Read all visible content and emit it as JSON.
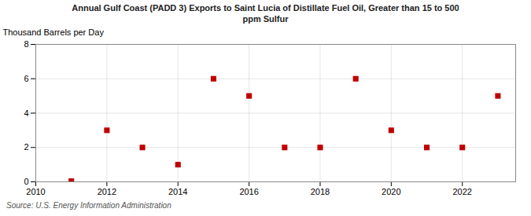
{
  "chart_data": {
    "type": "scatter",
    "title": "Annual Gulf Coast (PADD 3) Exports to Saint Lucia of Distillate Fuel Oil, Greater than 15 to 500\nppm Sulfur",
    "ylabel": "Thousand Barrels per Day",
    "source": "Source: U.S. Energy Information Administration",
    "x": [
      2011,
      2012,
      2013,
      2014,
      2015,
      2016,
      2017,
      2018,
      2019,
      2020,
      2021,
      2022,
      2023
    ],
    "values": [
      0.04,
      3.0,
      2.0,
      1.0,
      6.0,
      5.0,
      2.0,
      2.0,
      6.0,
      3.0,
      2.0,
      2.0,
      5.0
    ],
    "color": "#c00000",
    "marker": "square",
    "xlim": [
      2010,
      2023.5
    ],
    "ylim": [
      0,
      8
    ],
    "xticks": [
      2010,
      2012,
      2014,
      2016,
      2018,
      2020,
      2022
    ],
    "yticks": [
      0,
      2,
      4,
      6,
      8
    ],
    "grid": true
  }
}
